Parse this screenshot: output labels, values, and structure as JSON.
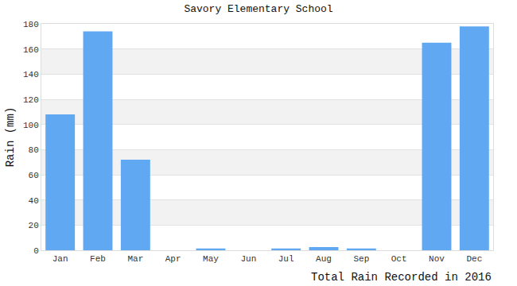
{
  "chart_data": {
    "type": "bar",
    "title": "Savory Elementary School",
    "ylabel": "Rain (mm)",
    "xlabel": "Total Rain Recorded in 2016",
    "categories": [
      "Jan",
      "Feb",
      "Mar",
      "Apr",
      "May",
      "Jun",
      "Jul",
      "Aug",
      "Sep",
      "Oct",
      "Nov",
      "Dec"
    ],
    "values": [
      108,
      174,
      72,
      0,
      1.5,
      0,
      1.5,
      2.5,
      1.5,
      0,
      165,
      178
    ],
    "color": "#60a8f2",
    "ylim": [
      0,
      180
    ],
    "yticks": [
      0,
      20,
      40,
      60,
      80,
      100,
      120,
      140,
      160,
      180
    ],
    "grid": true
  }
}
